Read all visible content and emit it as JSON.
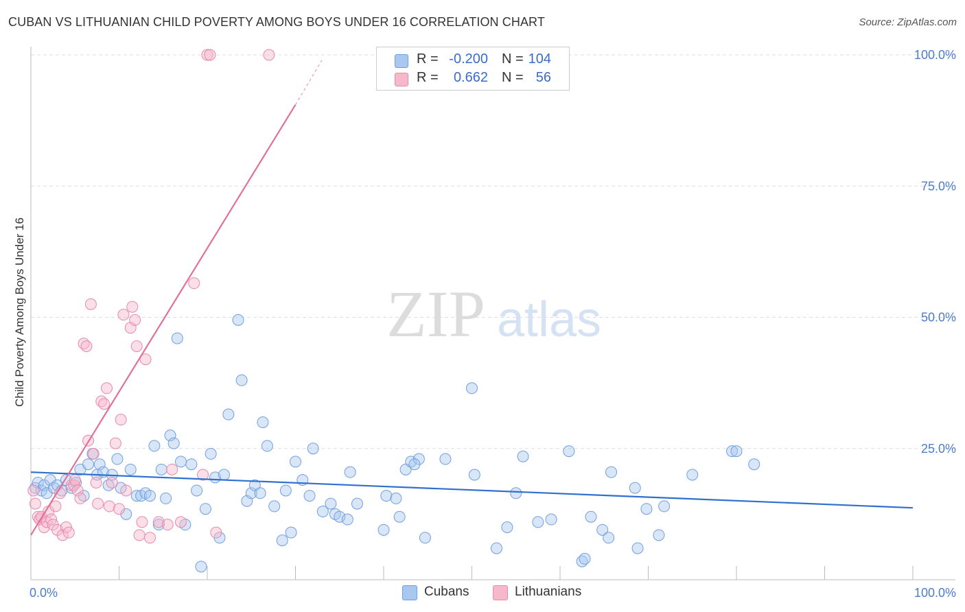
{
  "title": "CUBAN VS LITHUANIAN CHILD POVERTY AMONG BOYS UNDER 16 CORRELATION CHART",
  "source": "Source: ZipAtlas.com",
  "watermark": {
    "zip": "ZIP",
    "atlas": "atlas"
  },
  "legend": {
    "rows": [
      {
        "r_label": "R =",
        "r_value": "-0.200",
        "n_label": "N =",
        "n_value": "104",
        "color": "#a9c8f0",
        "edge": "#6f9fe0"
      },
      {
        "r_label": "R =",
        "r_value": "0.662",
        "n_label": "N =",
        "n_value": "56",
        "color": "#f7b8cb",
        "edge": "#e889a8"
      }
    ]
  },
  "bottom_legend": [
    {
      "label": "Cubans",
      "color": "#a9c8f0",
      "edge": "#6f9fe0"
    },
    {
      "label": "Lithuanians",
      "color": "#f7b8cb",
      "edge": "#e889a8"
    }
  ],
  "chart_data": {
    "type": "scatter",
    "title": "CUBAN VS LITHUANIAN CHILD POVERTY AMONG BOYS UNDER 16 CORRELATION CHART",
    "xlabel": "",
    "ylabel": "Child Poverty Among Boys Under 16",
    "xlim": [
      0,
      100
    ],
    "ylim": [
      0,
      100
    ],
    "x_tick_labels": [
      "0.0%",
      "100.0%"
    ],
    "y_ticks": [
      25,
      50,
      75,
      100
    ],
    "y_tick_labels": [
      "25.0%",
      "50.0%",
      "75.0%",
      "100.0%"
    ],
    "grid": true,
    "legend_position": "top-center",
    "series": [
      {
        "name": "Cubans",
        "color": "#6f9fe0",
        "fill": "#a9c8f0",
        "r": -0.2,
        "n": 104,
        "trend": {
          "x": [
            0,
            100
          ],
          "y": [
            20.5,
            13.7
          ]
        },
        "points": [
          [
            0.5,
            17.5
          ],
          [
            0.8,
            18.5
          ],
          [
            1.2,
            17
          ],
          [
            1.5,
            18
          ],
          [
            1.8,
            16.5
          ],
          [
            2.2,
            19
          ],
          [
            2.6,
            17.5
          ],
          [
            3.0,
            18
          ],
          [
            3.5,
            17
          ],
          [
            4.0,
            19
          ],
          [
            4.6,
            17.5
          ],
          [
            5.1,
            18.5
          ],
          [
            5.6,
            21
          ],
          [
            6.0,
            16
          ],
          [
            6.5,
            22
          ],
          [
            7.0,
            24
          ],
          [
            7.5,
            20
          ],
          [
            7.8,
            22
          ],
          [
            8.2,
            20.5
          ],
          [
            8.8,
            18
          ],
          [
            9.2,
            20
          ],
          [
            9.8,
            23
          ],
          [
            10.2,
            17.5
          ],
          [
            10.8,
            12.5
          ],
          [
            11.3,
            21
          ],
          [
            12.0,
            16
          ],
          [
            12.5,
            16
          ],
          [
            13.0,
            16.5
          ],
          [
            13.5,
            16
          ],
          [
            14.0,
            25.5
          ],
          [
            14.5,
            10.5
          ],
          [
            14.8,
            21
          ],
          [
            15.3,
            15.5
          ],
          [
            15.8,
            27.5
          ],
          [
            16.2,
            26
          ],
          [
            16.6,
            46
          ],
          [
            17.0,
            22.5
          ],
          [
            17.5,
            10.5
          ],
          [
            18.2,
            22
          ],
          [
            18.8,
            17
          ],
          [
            19.3,
            2.5
          ],
          [
            19.8,
            13.5
          ],
          [
            20.4,
            24
          ],
          [
            20.9,
            19.5
          ],
          [
            21.4,
            8
          ],
          [
            21.9,
            20
          ],
          [
            22.4,
            31.5
          ],
          [
            23.5,
            49.5
          ],
          [
            23.9,
            38
          ],
          [
            24.5,
            15
          ],
          [
            25.0,
            16.5
          ],
          [
            25.4,
            18
          ],
          [
            26.3,
            30
          ],
          [
            26.8,
            25.5
          ],
          [
            27.6,
            14
          ],
          [
            28.5,
            7.5
          ],
          [
            28.9,
            17
          ],
          [
            29.5,
            9
          ],
          [
            30.0,
            22.5
          ],
          [
            30.8,
            19
          ],
          [
            31.6,
            16
          ],
          [
            32.0,
            25
          ],
          [
            33.1,
            13
          ],
          [
            34.0,
            14.5
          ],
          [
            34.5,
            12.5
          ],
          [
            35.0,
            12
          ],
          [
            35.9,
            11.5
          ],
          [
            36.2,
            20.5
          ],
          [
            37.0,
            14.5
          ],
          [
            40.0,
            9.5
          ],
          [
            40.3,
            16
          ],
          [
            41.4,
            15.5
          ],
          [
            41.8,
            12
          ],
          [
            42.5,
            21
          ],
          [
            43.1,
            22.5
          ],
          [
            44.0,
            23
          ],
          [
            44.7,
            8
          ],
          [
            47.0,
            23
          ],
          [
            50.0,
            36.5
          ],
          [
            50.3,
            20
          ],
          [
            52.8,
            6
          ],
          [
            54.0,
            10
          ],
          [
            55.0,
            16.5
          ],
          [
            55.8,
            23.5
          ],
          [
            57.5,
            11
          ],
          [
            59.0,
            11.5
          ],
          [
            61.0,
            24.5
          ],
          [
            62.5,
            3.5
          ],
          [
            62.8,
            4
          ],
          [
            63.5,
            12
          ],
          [
            64.8,
            9.5
          ],
          [
            65.5,
            8
          ],
          [
            65.8,
            20.5
          ],
          [
            68.5,
            17.5
          ],
          [
            68.8,
            6
          ],
          [
            69.8,
            13.5
          ],
          [
            71.2,
            8.5
          ],
          [
            71.8,
            14
          ],
          [
            75.0,
            20
          ],
          [
            79.5,
            24.5
          ],
          [
            80.0,
            24.5
          ],
          [
            82.0,
            22
          ],
          [
            43.5,
            22
          ],
          [
            26.0,
            16.5
          ]
        ]
      },
      {
        "name": "Lithuanians",
        "color": "#e889a8",
        "fill": "#f7b8cb",
        "r": 0.662,
        "n": 56,
        "trend": {
          "x": [
            0,
            30
          ],
          "y": [
            8.5,
            90.5
          ],
          "dash": {
            "x": [
              30,
              33
            ],
            "y": [
              90.5,
              99
            ]
          }
        },
        "points": [
          [
            0.3,
            17
          ],
          [
            0.5,
            14.5
          ],
          [
            0.8,
            12
          ],
          [
            1.0,
            11.5
          ],
          [
            1.2,
            12
          ],
          [
            1.5,
            10
          ],
          [
            1.8,
            11
          ],
          [
            2.0,
            13
          ],
          [
            2.3,
            11.5
          ],
          [
            2.5,
            10.5
          ],
          [
            2.8,
            14
          ],
          [
            3.0,
            9.5
          ],
          [
            3.3,
            16.5
          ],
          [
            3.6,
            8.5
          ],
          [
            4.0,
            10
          ],
          [
            4.3,
            9
          ],
          [
            4.6,
            18
          ],
          [
            4.9,
            18
          ],
          [
            5.3,
            17
          ],
          [
            5.6,
            15.5
          ],
          [
            6.0,
            45
          ],
          [
            6.3,
            44.5
          ],
          [
            6.5,
            26.5
          ],
          [
            6.8,
            52.5
          ],
          [
            7.1,
            24
          ],
          [
            7.4,
            18.5
          ],
          [
            7.6,
            14.5
          ],
          [
            8.0,
            34
          ],
          [
            8.3,
            33.5
          ],
          [
            8.6,
            36.5
          ],
          [
            8.9,
            14
          ],
          [
            9.2,
            18.5
          ],
          [
            9.6,
            26
          ],
          [
            10.0,
            13.5
          ],
          [
            10.2,
            30.5
          ],
          [
            10.5,
            50.5
          ],
          [
            10.8,
            17
          ],
          [
            11.3,
            48
          ],
          [
            11.5,
            52
          ],
          [
            11.8,
            49.5
          ],
          [
            12.0,
            44.5
          ],
          [
            12.3,
            8.5
          ],
          [
            12.6,
            11
          ],
          [
            13.0,
            42
          ],
          [
            13.5,
            8
          ],
          [
            14.5,
            11
          ],
          [
            15.5,
            10.5
          ],
          [
            16.0,
            21
          ],
          [
            17.0,
            11
          ],
          [
            18.5,
            56.5
          ],
          [
            19.5,
            20
          ],
          [
            20.0,
            100
          ],
          [
            20.3,
            100
          ],
          [
            21.0,
            9
          ],
          [
            27.0,
            100
          ],
          [
            5.0,
            19
          ]
        ]
      }
    ]
  }
}
